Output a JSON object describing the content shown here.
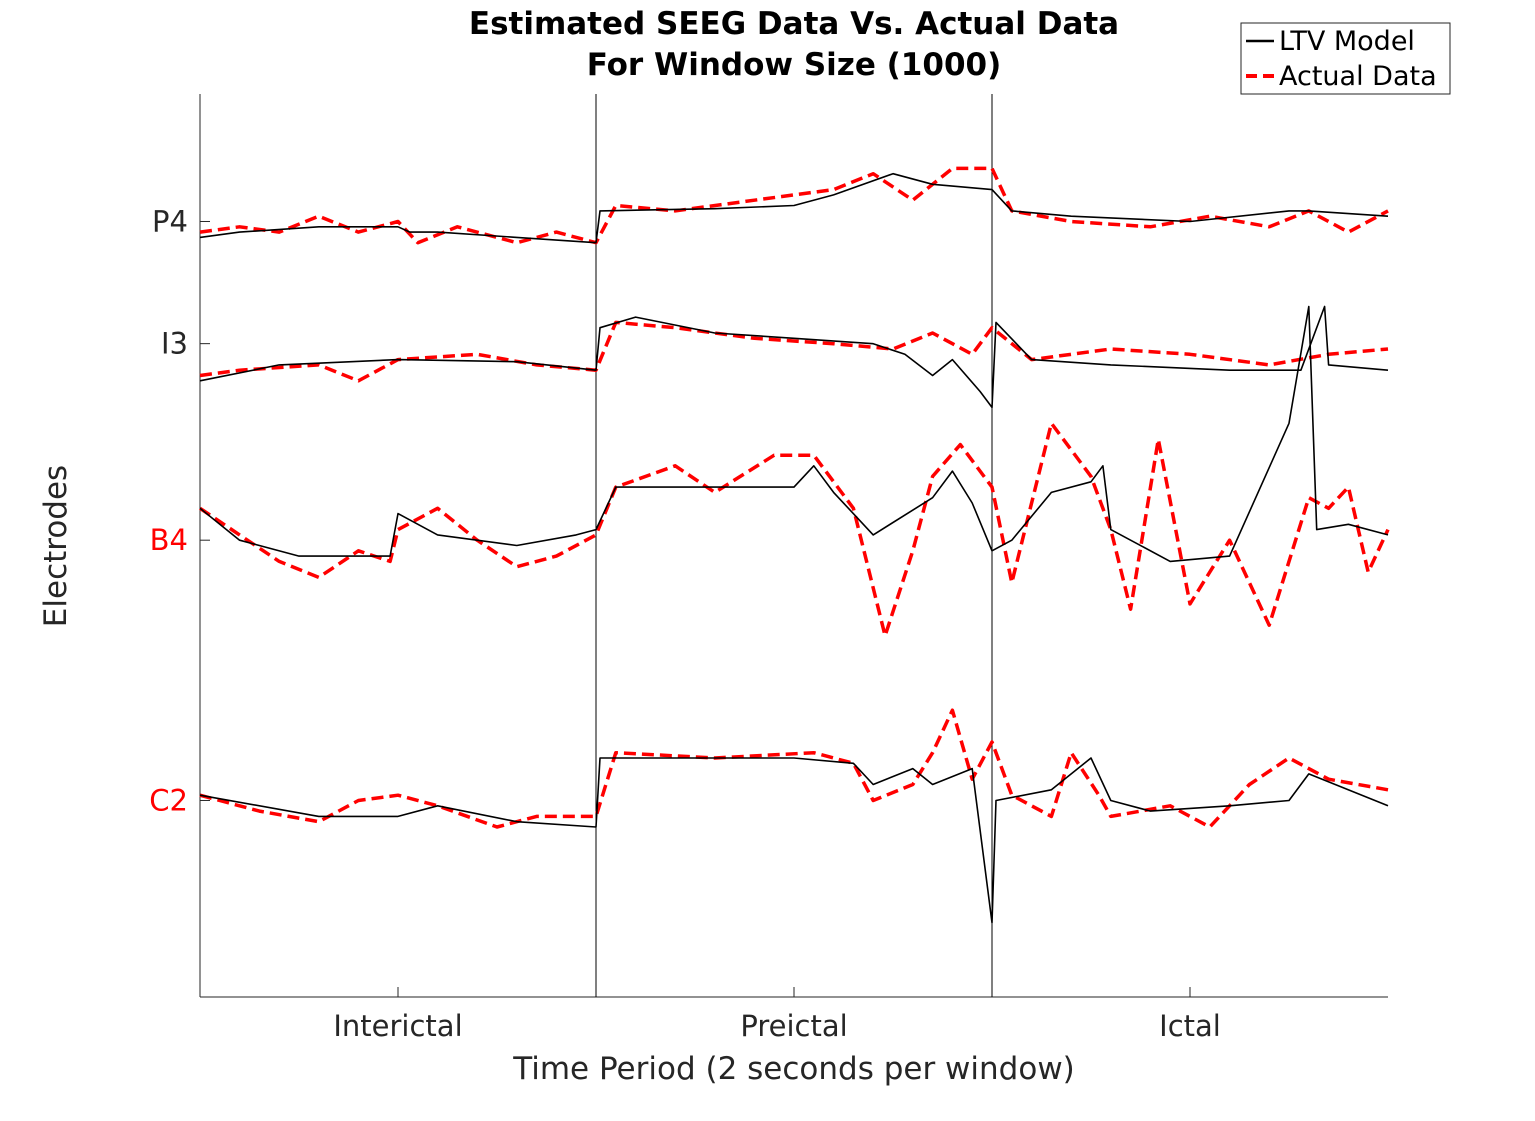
{
  "chart_data": {
    "type": "line",
    "title": [
      "Estimated SEEG Data Vs. Actual Data",
      "For Window Size (1000)"
    ],
    "xlabel": "Time Period (2 seconds per window)",
    "ylabel": "Electrodes",
    "x_categories": [
      "Interictal",
      "Preictal",
      "Ictal"
    ],
    "xlim": [
      0,
      3
    ],
    "x_ticks": [
      0.5,
      1.5,
      2.5
    ],
    "period_boundaries": [
      1,
      2
    ],
    "ylim": [
      -4.9,
      3.6
    ],
    "grid": false,
    "legend": {
      "placement": "top-right",
      "entries": [
        {
          "label": "LTV Model",
          "style": "solid",
          "color": "#000000"
        },
        {
          "label": "Actual Data",
          "style": "dashed",
          "color": "#ff0000"
        }
      ]
    },
    "electrodes": [
      {
        "label": "P4",
        "offset": 2.4,
        "label_color": "#262626"
      },
      {
        "label": "I3",
        "offset": 1.25,
        "label_color": "#262626"
      },
      {
        "label": "B4",
        "offset": -0.6,
        "label_color": "#ff0000"
      },
      {
        "label": "C2",
        "offset": -3.05,
        "label_color": "#ff0000"
      }
    ],
    "series": [
      {
        "name": "LTV Model",
        "color": "#000000",
        "style": "solid",
        "traces": {
          "P4": [
            [
              0,
              2.25
            ],
            [
              0.1,
              2.3
            ],
            [
              0.3,
              2.35
            ],
            [
              0.5,
              2.35
            ],
            [
              0.53,
              2.3
            ],
            [
              0.6,
              2.3
            ],
            [
              0.8,
              2.25
            ],
            [
              1.0,
              2.2
            ],
            [
              1.01,
              2.5
            ],
            [
              1.3,
              2.52
            ],
            [
              1.5,
              2.55
            ],
            [
              1.6,
              2.65
            ],
            [
              1.75,
              2.85
            ],
            [
              1.85,
              2.75
            ],
            [
              2.0,
              2.7
            ],
            [
              2.05,
              2.5
            ],
            [
              2.2,
              2.45
            ],
            [
              2.5,
              2.4
            ],
            [
              2.75,
              2.5
            ],
            [
              2.8,
              2.5
            ],
            [
              3.0,
              2.45
            ]
          ],
          "I3": [
            [
              0,
              0.9
            ],
            [
              0.2,
              1.05
            ],
            [
              0.5,
              1.1
            ],
            [
              0.8,
              1.08
            ],
            [
              1.0,
              1.0
            ],
            [
              1.01,
              1.4
            ],
            [
              1.1,
              1.5
            ],
            [
              1.3,
              1.35
            ],
            [
              1.5,
              1.3
            ],
            [
              1.7,
              1.25
            ],
            [
              1.78,
              1.15
            ],
            [
              1.85,
              0.95
            ],
            [
              1.9,
              1.1
            ],
            [
              1.97,
              0.8
            ],
            [
              2.0,
              0.65
            ],
            [
              2.01,
              1.45
            ],
            [
              2.1,
              1.1
            ],
            [
              2.3,
              1.05
            ],
            [
              2.6,
              1.0
            ],
            [
              2.78,
              1.0
            ],
            [
              2.84,
              1.6
            ],
            [
              2.85,
              1.05
            ],
            [
              3.0,
              1.0
            ]
          ],
          "B4": [
            [
              0,
              -0.3
            ],
            [
              0.1,
              -0.6
            ],
            [
              0.25,
              -0.75
            ],
            [
              0.48,
              -0.75
            ],
            [
              0.5,
              -0.35
            ],
            [
              0.6,
              -0.55
            ],
            [
              0.8,
              -0.65
            ],
            [
              0.95,
              -0.55
            ],
            [
              1.0,
              -0.5
            ],
            [
              1.05,
              -0.1
            ],
            [
              1.3,
              -0.1
            ],
            [
              1.5,
              -0.1
            ],
            [
              1.55,
              0.1
            ],
            [
              1.6,
              -0.15
            ],
            [
              1.7,
              -0.55
            ],
            [
              1.85,
              -0.2
            ],
            [
              1.9,
              0.05
            ],
            [
              1.95,
              -0.25
            ],
            [
              2.0,
              -0.7
            ],
            [
              2.05,
              -0.6
            ],
            [
              2.15,
              -0.15
            ],
            [
              2.25,
              -0.05
            ],
            [
              2.28,
              0.1
            ],
            [
              2.3,
              -0.5
            ],
            [
              2.45,
              -0.8
            ],
            [
              2.6,
              -0.75
            ],
            [
              2.75,
              0.5
            ],
            [
              2.8,
              1.6
            ],
            [
              2.82,
              -0.5
            ],
            [
              2.9,
              -0.45
            ],
            [
              3.0,
              -0.55
            ]
          ],
          "C2": [
            [
              0,
              -3.0
            ],
            [
              0.3,
              -3.2
            ],
            [
              0.5,
              -3.2
            ],
            [
              0.6,
              -3.1
            ],
            [
              0.8,
              -3.25
            ],
            [
              1.0,
              -3.3
            ],
            [
              1.01,
              -2.65
            ],
            [
              1.5,
              -2.65
            ],
            [
              1.65,
              -2.7
            ],
            [
              1.7,
              -2.9
            ],
            [
              1.8,
              -2.75
            ],
            [
              1.85,
              -2.9
            ],
            [
              1.95,
              -2.75
            ],
            [
              2.0,
              -4.2
            ],
            [
              2.01,
              -3.05
            ],
            [
              2.15,
              -2.95
            ],
            [
              2.25,
              -2.65
            ],
            [
              2.3,
              -3.05
            ],
            [
              2.4,
              -3.15
            ],
            [
              2.6,
              -3.1
            ],
            [
              2.75,
              -3.05
            ],
            [
              2.8,
              -2.8
            ],
            [
              3.0,
              -3.1
            ]
          ]
        }
      },
      {
        "name": "Actual Data",
        "color": "#ff0000",
        "style": "dashed",
        "traces": {
          "P4": [
            [
              0,
              2.3
            ],
            [
              0.1,
              2.35
            ],
            [
              0.2,
              2.3
            ],
            [
              0.3,
              2.45
            ],
            [
              0.4,
              2.3
            ],
            [
              0.5,
              2.4
            ],
            [
              0.55,
              2.2
            ],
            [
              0.65,
              2.35
            ],
            [
              0.8,
              2.2
            ],
            [
              0.9,
              2.3
            ],
            [
              1.0,
              2.2
            ],
            [
              1.05,
              2.55
            ],
            [
              1.2,
              2.5
            ],
            [
              1.4,
              2.6
            ],
            [
              1.6,
              2.7
            ],
            [
              1.7,
              2.85
            ],
            [
              1.8,
              2.6
            ],
            [
              1.9,
              2.9
            ],
            [
              2.0,
              2.9
            ],
            [
              2.05,
              2.5
            ],
            [
              2.2,
              2.4
            ],
            [
              2.4,
              2.35
            ],
            [
              2.55,
              2.45
            ],
            [
              2.7,
              2.35
            ],
            [
              2.8,
              2.5
            ],
            [
              2.9,
              2.3
            ],
            [
              3.0,
              2.5
            ]
          ],
          "I3": [
            [
              0,
              0.95
            ],
            [
              0.1,
              1.0
            ],
            [
              0.3,
              1.05
            ],
            [
              0.4,
              0.9
            ],
            [
              0.5,
              1.1
            ],
            [
              0.7,
              1.15
            ],
            [
              0.85,
              1.05
            ],
            [
              1.0,
              1.0
            ],
            [
              1.05,
              1.45
            ],
            [
              1.2,
              1.4
            ],
            [
              1.4,
              1.3
            ],
            [
              1.6,
              1.25
            ],
            [
              1.75,
              1.2
            ],
            [
              1.85,
              1.35
            ],
            [
              1.95,
              1.15
            ],
            [
              2.0,
              1.4
            ],
            [
              2.1,
              1.1
            ],
            [
              2.3,
              1.2
            ],
            [
              2.5,
              1.15
            ],
            [
              2.7,
              1.05
            ],
            [
              2.85,
              1.15
            ],
            [
              3.0,
              1.2
            ]
          ],
          "B4": [
            [
              0,
              -0.3
            ],
            [
              0.1,
              -0.55
            ],
            [
              0.2,
              -0.8
            ],
            [
              0.3,
              -0.95
            ],
            [
              0.4,
              -0.7
            ],
            [
              0.48,
              -0.8
            ],
            [
              0.5,
              -0.5
            ],
            [
              0.6,
              -0.3
            ],
            [
              0.7,
              -0.6
            ],
            [
              0.8,
              -0.85
            ],
            [
              0.9,
              -0.75
            ],
            [
              1.0,
              -0.55
            ],
            [
              1.05,
              -0.1
            ],
            [
              1.2,
              0.1
            ],
            [
              1.3,
              -0.15
            ],
            [
              1.45,
              0.2
            ],
            [
              1.55,
              0.2
            ],
            [
              1.65,
              -0.3
            ],
            [
              1.73,
              -1.5
            ],
            [
              1.8,
              -0.7
            ],
            [
              1.85,
              0.0
            ],
            [
              1.92,
              0.3
            ],
            [
              2.0,
              -0.1
            ],
            [
              2.05,
              -1.0
            ],
            [
              2.15,
              0.5
            ],
            [
              2.25,
              0.0
            ],
            [
              2.3,
              -0.5
            ],
            [
              2.35,
              -1.25
            ],
            [
              2.42,
              0.35
            ],
            [
              2.5,
              -1.2
            ],
            [
              2.6,
              -0.6
            ],
            [
              2.7,
              -1.4
            ],
            [
              2.8,
              -0.2
            ],
            [
              2.85,
              -0.3
            ],
            [
              2.9,
              -0.1
            ],
            [
              2.95,
              -0.9
            ],
            [
              3.0,
              -0.5
            ]
          ],
          "C2": [
            [
              0,
              -3.0
            ],
            [
              0.15,
              -3.15
            ],
            [
              0.3,
              -3.25
            ],
            [
              0.4,
              -3.05
            ],
            [
              0.5,
              -3.0
            ],
            [
              0.6,
              -3.1
            ],
            [
              0.75,
              -3.3
            ],
            [
              0.85,
              -3.2
            ],
            [
              1.0,
              -3.2
            ],
            [
              1.05,
              -2.6
            ],
            [
              1.3,
              -2.65
            ],
            [
              1.55,
              -2.6
            ],
            [
              1.65,
              -2.7
            ],
            [
              1.7,
              -3.05
            ],
            [
              1.8,
              -2.9
            ],
            [
              1.85,
              -2.6
            ],
            [
              1.9,
              -2.2
            ],
            [
              1.95,
              -2.85
            ],
            [
              2.0,
              -2.5
            ],
            [
              2.05,
              -3.0
            ],
            [
              2.15,
              -3.2
            ],
            [
              2.2,
              -2.6
            ],
            [
              2.27,
              -3.0
            ],
            [
              2.3,
              -3.2
            ],
            [
              2.45,
              -3.1
            ],
            [
              2.55,
              -3.3
            ],
            [
              2.65,
              -2.9
            ],
            [
              2.75,
              -2.65
            ],
            [
              2.85,
              -2.85
            ],
            [
              3.0,
              -2.95
            ]
          ]
        }
      }
    ]
  }
}
